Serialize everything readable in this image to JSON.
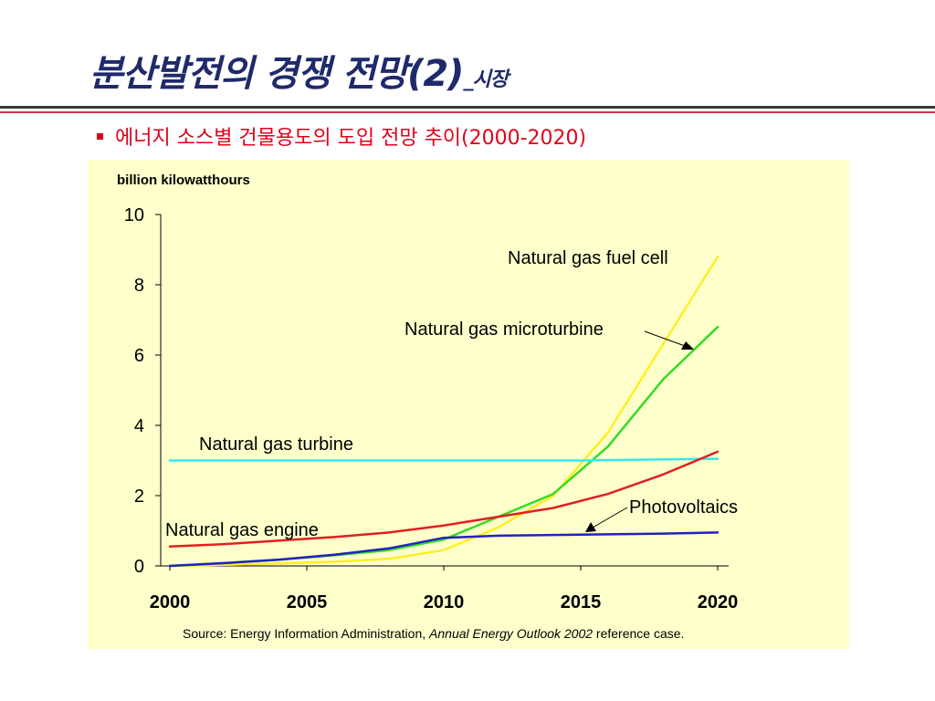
{
  "slide": {
    "title": "분산발전의 경쟁 전망(2)",
    "title_suffix": "_시장",
    "bullet": "에너지 소스별 건물용도의 도입 전망 추이(2000-2020)"
  },
  "colors": {
    "title": "#1f2a6b",
    "bullet": "#e0001a",
    "panel_bg": "#ffffcc"
  },
  "chart_data": {
    "type": "line",
    "title": "",
    "xlabel": "",
    "ylabel": "billion kilowatthours",
    "xlim": [
      2000,
      2020
    ],
    "ylim": [
      0,
      10
    ],
    "x_ticks": [
      "2000",
      "2005",
      "2010",
      "2015",
      "2020"
    ],
    "y_ticks": [
      "0",
      "2",
      "4",
      "6",
      "8",
      "10"
    ],
    "grid": false,
    "source_prefix": "Source:  Energy Information Administration, ",
    "source_italic": "Annual Energy Outlook 2002",
    "source_suffix": " reference case.",
    "series": [
      {
        "name": "Natural gas fuel cell",
        "color": "#ffee22",
        "x": [
          2000,
          2002,
          2004,
          2006,
          2008,
          2010,
          2012,
          2014,
          2016,
          2018,
          2020
        ],
        "y": [
          0.0,
          0.03,
          0.07,
          0.12,
          0.2,
          0.45,
          1.1,
          2.0,
          3.8,
          6.3,
          8.8
        ]
      },
      {
        "name": "Natural gas microturbine",
        "color": "#33dd22",
        "x": [
          2000,
          2002,
          2004,
          2006,
          2008,
          2010,
          2012,
          2014,
          2016,
          2018,
          2020
        ],
        "y": [
          0.0,
          0.08,
          0.18,
          0.3,
          0.45,
          0.75,
          1.4,
          2.05,
          3.4,
          5.3,
          6.8
        ]
      },
      {
        "name": "Natural gas turbine",
        "color": "#33e8ee",
        "x": [
          2000,
          2005,
          2010,
          2015,
          2020
        ],
        "y": [
          3.0,
          3.0,
          3.0,
          3.0,
          3.05
        ]
      },
      {
        "name": "Natural gas engine",
        "color": "#e02020",
        "x": [
          2000,
          2002,
          2004,
          2006,
          2008,
          2010,
          2012,
          2014,
          2016,
          2018,
          2020
        ],
        "y": [
          0.55,
          0.62,
          0.72,
          0.82,
          0.95,
          1.15,
          1.4,
          1.65,
          2.05,
          2.6,
          3.25
        ]
      },
      {
        "name": "Photovoltaics",
        "color": "#2222bb",
        "x": [
          2000,
          2002,
          2004,
          2006,
          2008,
          2010,
          2012,
          2014,
          2016,
          2018,
          2020
        ],
        "y": [
          0.0,
          0.08,
          0.18,
          0.32,
          0.5,
          0.8,
          0.86,
          0.88,
          0.9,
          0.92,
          0.95
        ]
      }
    ]
  }
}
